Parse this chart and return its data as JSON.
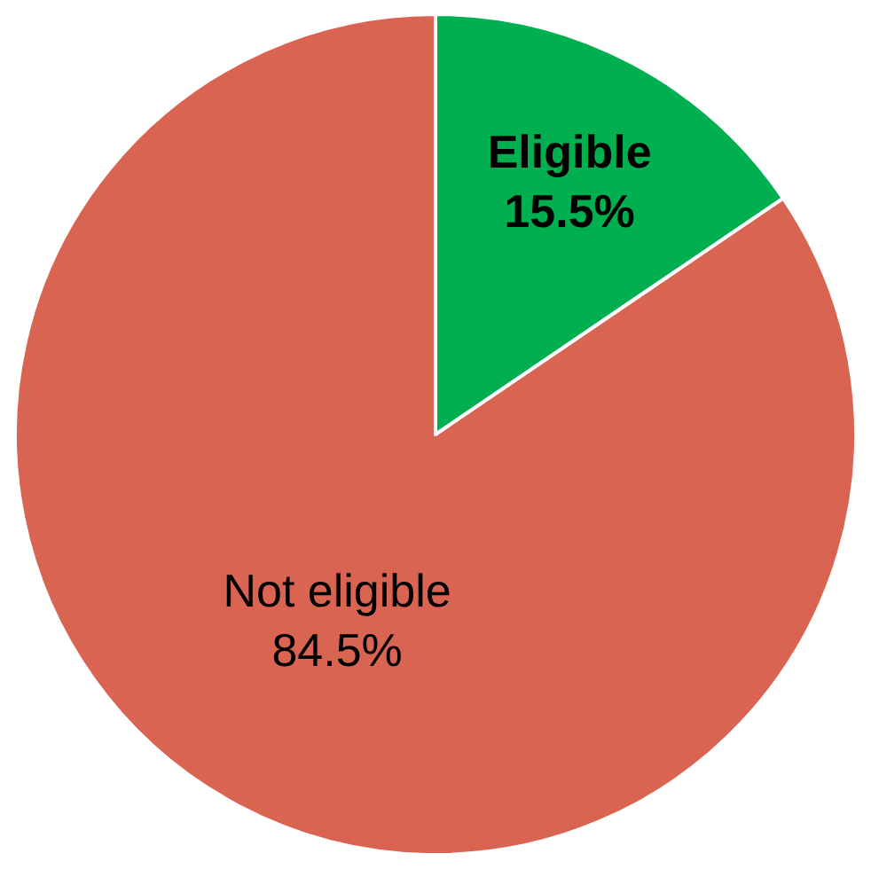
{
  "chart_data": {
    "type": "pie",
    "categories": [
      "Eligible",
      "Not eligible"
    ],
    "values": [
      15.5,
      84.5
    ],
    "colors": [
      "#00b050",
      "#d86451"
    ],
    "value_labels": [
      "15.5%",
      "84.5%"
    ],
    "legend": false
  }
}
